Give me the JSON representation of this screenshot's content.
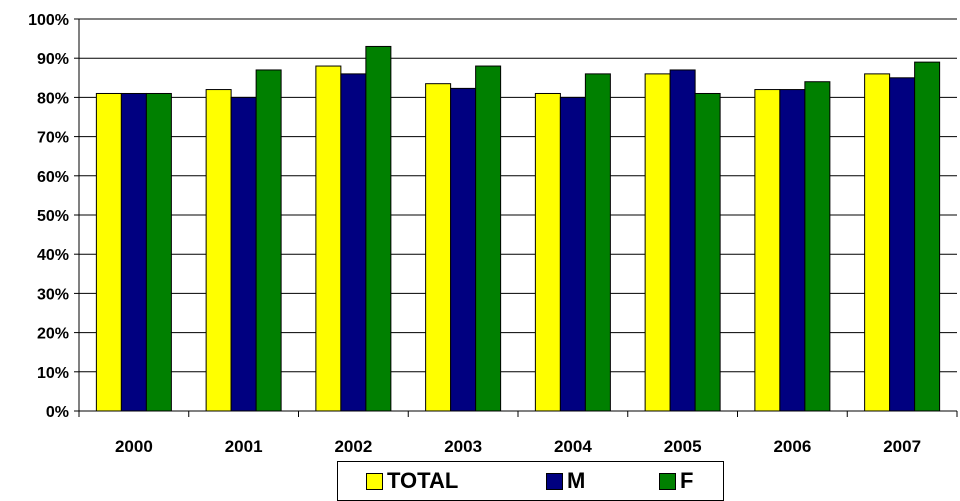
{
  "chart_data": {
    "type": "bar",
    "categories": [
      "2000",
      "2001",
      "2002",
      "2003",
      "2004",
      "2005",
      "2006",
      "2007"
    ],
    "series": [
      {
        "name": "TOTAL",
        "color": "#ffff00",
        "values": [
          81,
          82,
          88,
          83.5,
          81,
          86,
          82,
          86
        ]
      },
      {
        "name": "M",
        "color": "#000080",
        "values": [
          81,
          80,
          86,
          82.3,
          80,
          87,
          82,
          85
        ]
      },
      {
        "name": "F",
        "color": "#008000",
        "values": [
          81,
          87,
          93,
          88,
          86,
          81,
          84,
          89
        ]
      }
    ],
    "y_ticks": [
      "0%",
      "10%",
      "20%",
      "30%",
      "40%",
      "50%",
      "60%",
      "70%",
      "80%",
      "90%",
      "100%"
    ],
    "ylim": [
      0,
      100
    ],
    "grid": true,
    "legend_position": "bottom",
    "title": "",
    "xlabel": "",
    "ylabel": ""
  }
}
